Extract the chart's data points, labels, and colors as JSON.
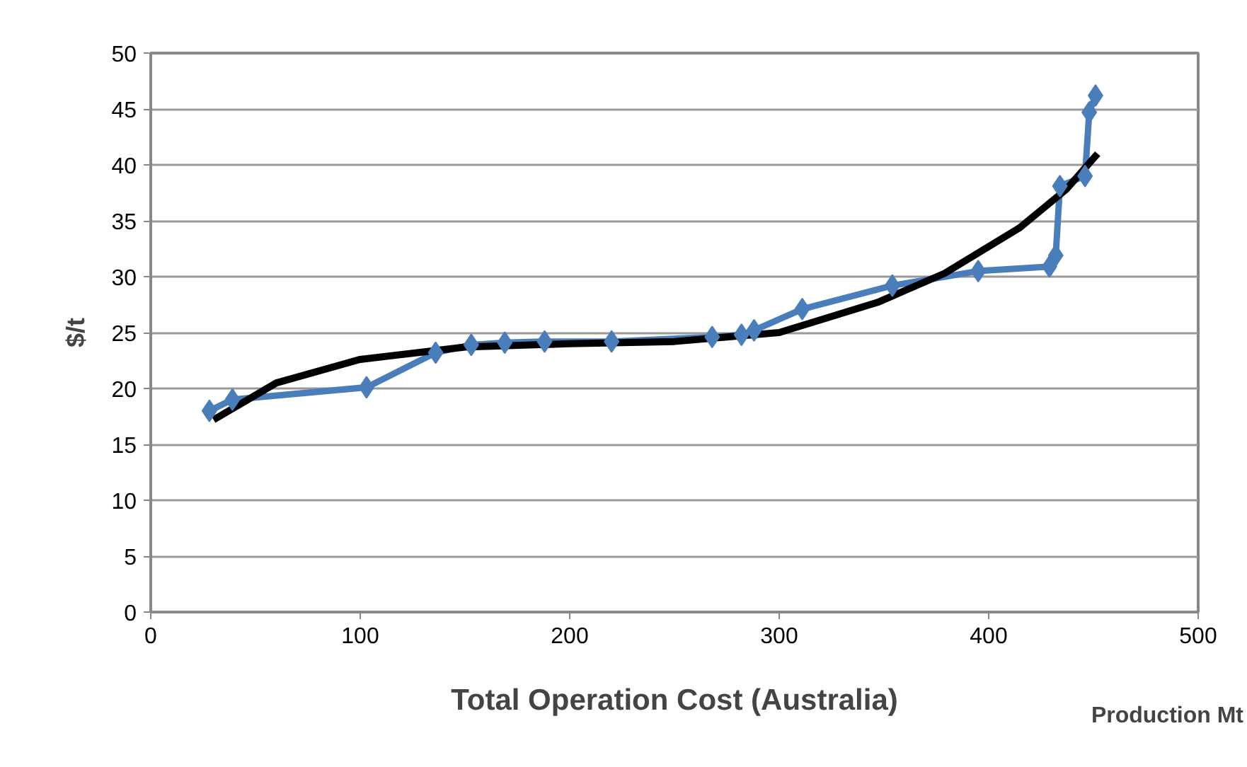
{
  "chart_data": {
    "type": "line",
    "title": "Total Operation Cost (Australia)",
    "xlabel": "Production Mt",
    "ylabel": "$/t",
    "xlim": [
      0,
      500
    ],
    "xticks": [
      0,
      100,
      200,
      300,
      400,
      500
    ],
    "ylim": [
      0,
      50
    ],
    "yticks": [
      0,
      5,
      10,
      15,
      20,
      25,
      30,
      35,
      40,
      45,
      50
    ],
    "grid": "y",
    "marker": "diamond",
    "line_style": "solid",
    "series": [
      {
        "color": "#4a7ebb",
        "x": [
          28,
          39,
          103,
          136,
          153,
          169,
          188,
          220,
          268,
          282,
          288,
          311,
          354,
          395,
          429,
          432,
          434,
          446,
          448,
          451
        ],
        "values": [
          18.0,
          19.0,
          20.1,
          23.2,
          23.9,
          24.1,
          24.2,
          24.2,
          24.6,
          24.8,
          25.2,
          27.1,
          29.2,
          30.5,
          30.9,
          31.9,
          38.1,
          39.0,
          44.7,
          46.2
        ]
      },
      {
        "color": "#000000",
        "marker": "none",
        "x": [
          30,
          60,
          100,
          150,
          200,
          250,
          300,
          347,
          379,
          415,
          437,
          452
        ],
        "values": [
          17.2,
          20.5,
          22.6,
          23.7,
          24.0,
          24.2,
          25.0,
          27.7,
          30.3,
          34.4,
          37.8,
          41.0
        ]
      }
    ]
  }
}
